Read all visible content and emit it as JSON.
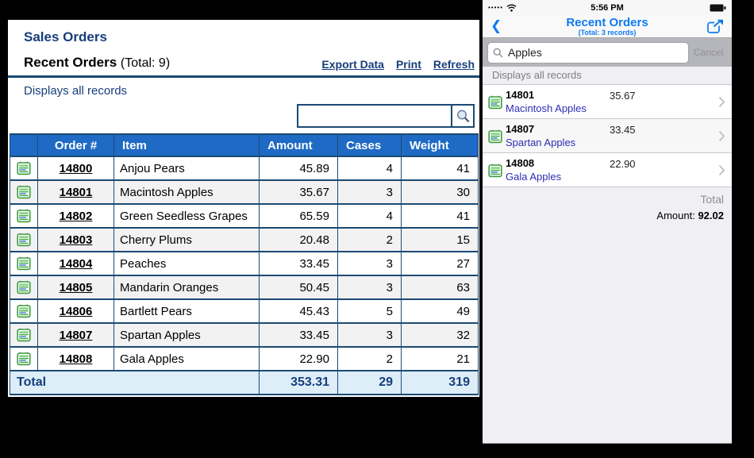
{
  "desktop": {
    "title": "Sales Orders",
    "section": {
      "title": "Recent Orders",
      "total": "(Total: 9)"
    },
    "links": {
      "export": "Export Data",
      "print": "Print",
      "refresh": "Refresh"
    },
    "status": "Displays all records",
    "search": {
      "value": ""
    },
    "table": {
      "headers": [
        "",
        "Order #",
        "Item",
        "Amount",
        "Cases",
        "Weight"
      ],
      "rows": [
        {
          "order": "14800",
          "item": "Anjou Pears",
          "amount": "45.89",
          "cases": "4",
          "weight": "41"
        },
        {
          "order": "14801",
          "item": "Macintosh Apples",
          "amount": "35.67",
          "cases": "3",
          "weight": "30"
        },
        {
          "order": "14802",
          "item": "Green Seedless Grapes",
          "amount": "65.59",
          "cases": "4",
          "weight": "41"
        },
        {
          "order": "14803",
          "item": "Cherry Plums",
          "amount": "20.48",
          "cases": "2",
          "weight": "15"
        },
        {
          "order": "14804",
          "item": "Peaches",
          "amount": "33.45",
          "cases": "3",
          "weight": "27"
        },
        {
          "order": "14805",
          "item": "Mandarin Oranges",
          "amount": "50.45",
          "cases": "3",
          "weight": "63"
        },
        {
          "order": "14806",
          "item": "Bartlett Pears",
          "amount": "45.43",
          "cases": "5",
          "weight": "49"
        },
        {
          "order": "14807",
          "item": "Spartan Apples",
          "amount": "33.45",
          "cases": "3",
          "weight": "32"
        },
        {
          "order": "14808",
          "item": "Gala Apples",
          "amount": "22.90",
          "cases": "2",
          "weight": "21"
        }
      ],
      "total": {
        "label": "Total",
        "amount": "353.31",
        "cases": "29",
        "weight": "319"
      }
    }
  },
  "phone": {
    "status_bar": {
      "signal_dots": "•••••",
      "time": "5:56 PM"
    },
    "nav": {
      "title": "Recent Orders",
      "subtitle": "(Total: 3 records)"
    },
    "search": {
      "value": "Apples",
      "cancel_label": "Cancel"
    },
    "status": "Displays all records",
    "list": {
      "rows": [
        {
          "order": "14801",
          "item": "Macintosh Apples",
          "amount": "35.67"
        },
        {
          "order": "14807",
          "item": "Spartan Apples",
          "amount": "33.45"
        },
        {
          "order": "14808",
          "item": "Gala Apples",
          "amount": "22.90"
        }
      ]
    },
    "totals": {
      "label": "Total",
      "amount_label": "Amount:",
      "amount_value": "92.02"
    }
  },
  "colors": {
    "desktop_navy": "#173e7b",
    "table_header_blue": "#1e6ac4",
    "table_border_navy": "#1b4a73",
    "total_row_bg": "#ddeef9",
    "alt_row_gray": "#f2f2f2",
    "ios_blue": "#0d7af2",
    "ios_gray_text": "#8e8e93",
    "phone_search_band": "#b5b6bc",
    "phone_bg": "#efeff4",
    "item_link_blue": "#2d2db4"
  }
}
